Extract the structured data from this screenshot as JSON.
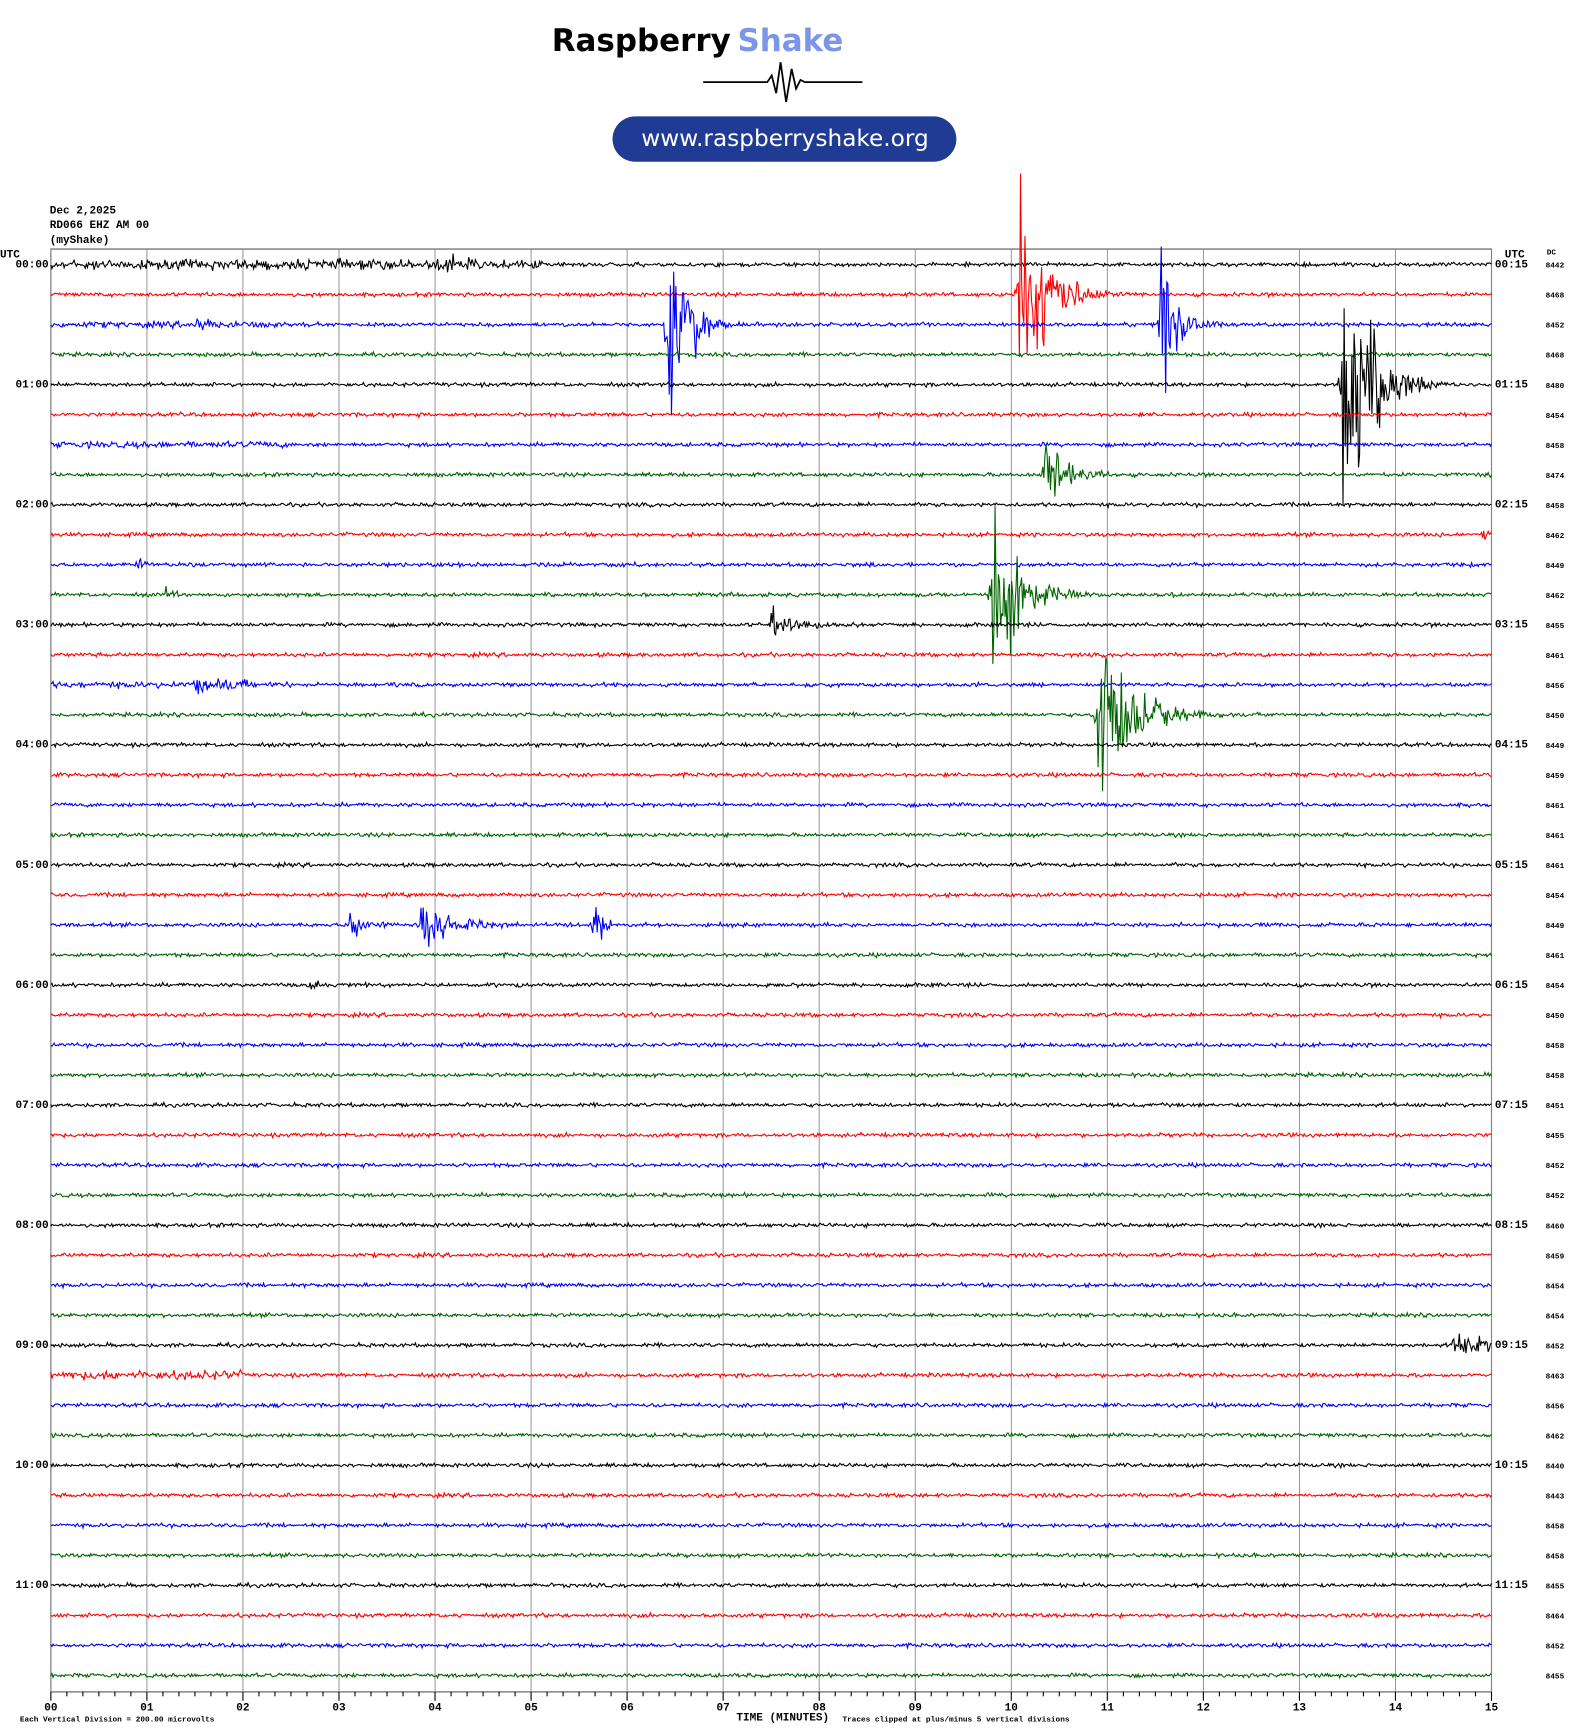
{
  "header": {
    "brand_main": "Raspberry",
    "brand_accent": "Shake",
    "url": "www.raspberryshake.org"
  },
  "plot": {
    "info": [
      "Dec 2,2025",
      "RD066 EHZ AM 00",
      "(myShake)"
    ],
    "utc_left": "UTC",
    "utc_right": "UTC",
    "dc_label": "DC",
    "trace_colors": [
      "#000000",
      "#ff0000",
      "#0000ff",
      "#006400"
    ],
    "left_labels": [
      "00:00",
      "01:00",
      "02:00",
      "03:00",
      "04:00",
      "05:00",
      "06:00",
      "07:00",
      "08:00",
      "09:00",
      "10:00",
      "11:00"
    ],
    "right_labels": [
      "00:15",
      "01:15",
      "02:15",
      "03:15",
      "04:15",
      "05:15",
      "06:15",
      "07:15",
      "08:15",
      "09:15",
      "10:15",
      "11:15"
    ],
    "dc": [
      8442,
      8468,
      8452,
      8468,
      8480,
      8454,
      8458,
      8474,
      8458,
      8462,
      8449,
      8462,
      8455,
      8461,
      8456,
      8450,
      8449,
      8459,
      8461,
      8461,
      8461,
      8454,
      8449,
      8461,
      8454,
      8450,
      8458,
      8458,
      8451,
      8455,
      8452,
      8452,
      8460,
      8459,
      8454,
      8454,
      8452,
      8463,
      8456,
      8462,
      8440,
      8443,
      8458,
      8458,
      8455,
      8464,
      8452,
      8455
    ],
    "x_ticks": [
      "00",
      "01",
      "02",
      "03",
      "04",
      "05",
      "06",
      "07",
      "08",
      "09",
      "10",
      "11",
      "12",
      "13",
      "14",
      "15"
    ],
    "x_label": "TIME (MINUTES)",
    "footer_left": "Each Vertical Division =  200.00 microvolts",
    "footer_right": "Traces clipped at plus/minus 5 vertical divisions"
  }
}
